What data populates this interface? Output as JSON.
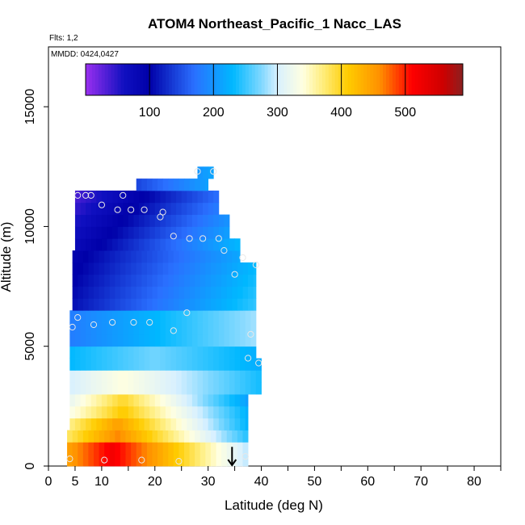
{
  "chart_data": {
    "type": "heatmap",
    "title": "ATOM4 Northeast_Pacific_1 Nacc_LAS",
    "flights_label": "Flts: 1,2",
    "dates_label": "MMDD: 0424,0427",
    "xlabel": "Latitude (deg N)",
    "ylabel": "Altitude (m)",
    "xlim": [
      0,
      85
    ],
    "ylim": [
      0,
      17500
    ],
    "x_ticks": [
      0,
      5,
      10,
      20,
      30,
      40,
      50,
      60,
      70,
      80
    ],
    "x_ticks_minor": [
      15,
      25,
      35,
      45,
      55,
      65,
      75,
      85
    ],
    "y_ticks": [
      0,
      5000,
      10000,
      15000
    ],
    "colorbar": {
      "range": [
        0,
        590
      ],
      "ticks": [
        100,
        200,
        300,
        400,
        500
      ],
      "stops": [
        {
          "v": 0,
          "c": "#9a30f0"
        },
        {
          "v": 60,
          "c": "#1010c0"
        },
        {
          "v": 100,
          "c": "#0000a8"
        },
        {
          "v": 170,
          "c": "#2a70ff"
        },
        {
          "v": 230,
          "c": "#00b8ff"
        },
        {
          "v": 275,
          "c": "#80d8ff"
        },
        {
          "v": 300,
          "c": "#d8f0ff"
        },
        {
          "v": 340,
          "c": "#ffffe0"
        },
        {
          "v": 370,
          "c": "#ffee80"
        },
        {
          "v": 410,
          "c": "#ffcc00"
        },
        {
          "v": 460,
          "c": "#ff9000"
        },
        {
          "v": 510,
          "c": "#ff0000"
        },
        {
          "v": 560,
          "c": "#cc0000"
        },
        {
          "v": 590,
          "c": "#8a2020"
        }
      ]
    },
    "grid": false,
    "legend": "top colorbar",
    "data_extent": {
      "lat": [
        4,
        40
      ],
      "alt": [
        0,
        12500
      ]
    },
    "observations": [
      {
        "lat": 4.5,
        "alt": 5800
      },
      {
        "lat": 5.5,
        "alt": 6200
      },
      {
        "lat": 8.5,
        "alt": 5900
      },
      {
        "lat": 12,
        "alt": 6000
      },
      {
        "lat": 16,
        "alt": 6000
      },
      {
        "lat": 19,
        "alt": 6000
      },
      {
        "lat": 23.5,
        "alt": 5650
      },
      {
        "lat": 26,
        "alt": 6400
      },
      {
        "lat": 38,
        "alt": 5500
      },
      {
        "lat": 37.5,
        "alt": 4500
      },
      {
        "lat": 39.5,
        "alt": 4300
      },
      {
        "lat": 35,
        "alt": 8000
      },
      {
        "lat": 36.5,
        "alt": 8700
      },
      {
        "lat": 33,
        "alt": 9000
      },
      {
        "lat": 32,
        "alt": 9500
      },
      {
        "lat": 29,
        "alt": 9500
      },
      {
        "lat": 26.5,
        "alt": 9500
      },
      {
        "lat": 23.5,
        "alt": 9600
      },
      {
        "lat": 21,
        "alt": 10400
      },
      {
        "lat": 21.5,
        "alt": 10600
      },
      {
        "lat": 18,
        "alt": 10700
      },
      {
        "lat": 15.5,
        "alt": 10700
      },
      {
        "lat": 13,
        "alt": 10700
      },
      {
        "lat": 10,
        "alt": 10900
      },
      {
        "lat": 14,
        "alt": 11300
      },
      {
        "lat": 7,
        "alt": 11300
      },
      {
        "lat": 8,
        "alt": 11300
      },
      {
        "lat": 5.5,
        "alt": 11300
      },
      {
        "lat": 28,
        "alt": 12300
      },
      {
        "lat": 31,
        "alt": 12300
      },
      {
        "lat": 10.5,
        "alt": 250
      },
      {
        "lat": 17.5,
        "alt": 250
      },
      {
        "lat": 24.5,
        "alt": 200
      },
      {
        "lat": 4,
        "alt": 300
      },
      {
        "lat": 37,
        "alt": 400
      },
      {
        "lat": 39,
        "alt": 8400
      }
    ],
    "arrow": {
      "lat": 34.5,
      "alt": 800
    }
  }
}
